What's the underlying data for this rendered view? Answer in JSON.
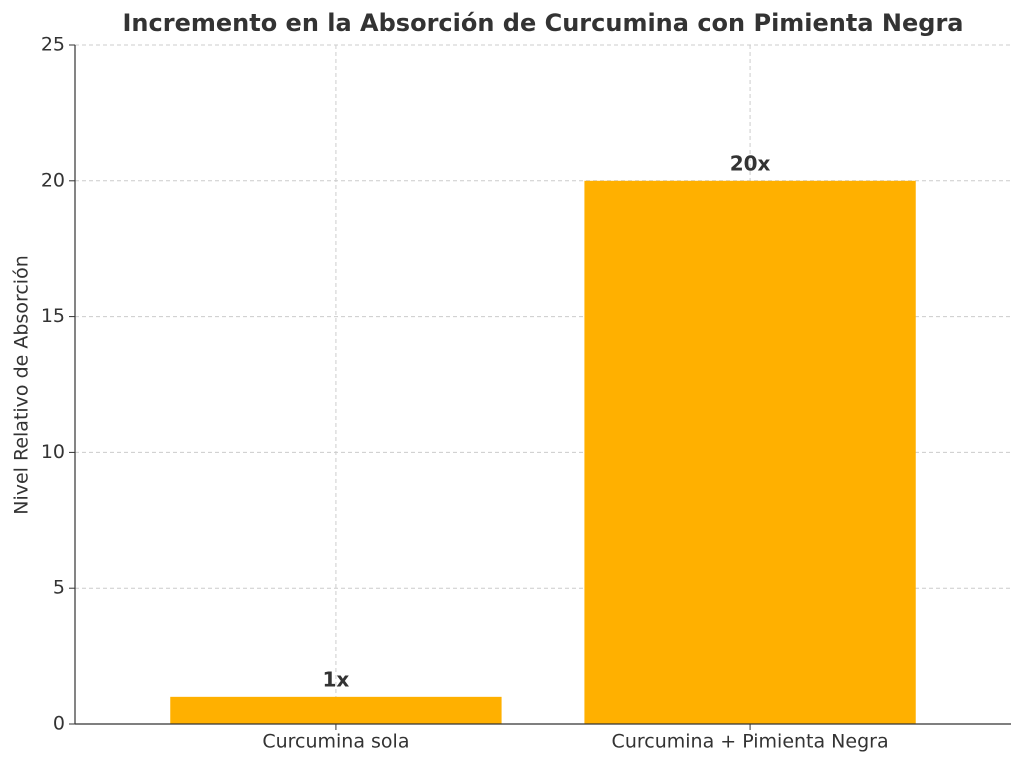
{
  "chart_data": {
    "type": "bar",
    "title": "Incremento en la Absorción de Curcumina con Pimienta Negra",
    "y_label": "Nivel Relativo de Absorción",
    "categories": [
      "Curcumina sola",
      "Curcumina + Pimienta Negra"
    ],
    "values": [
      1,
      20
    ],
    "value_labels": [
      "1x",
      "20x"
    ],
    "color": "#ffb000",
    "ylim": [
      0,
      25
    ],
    "yticks": [
      0,
      5,
      10,
      15,
      20,
      25
    ],
    "grid": true
  }
}
